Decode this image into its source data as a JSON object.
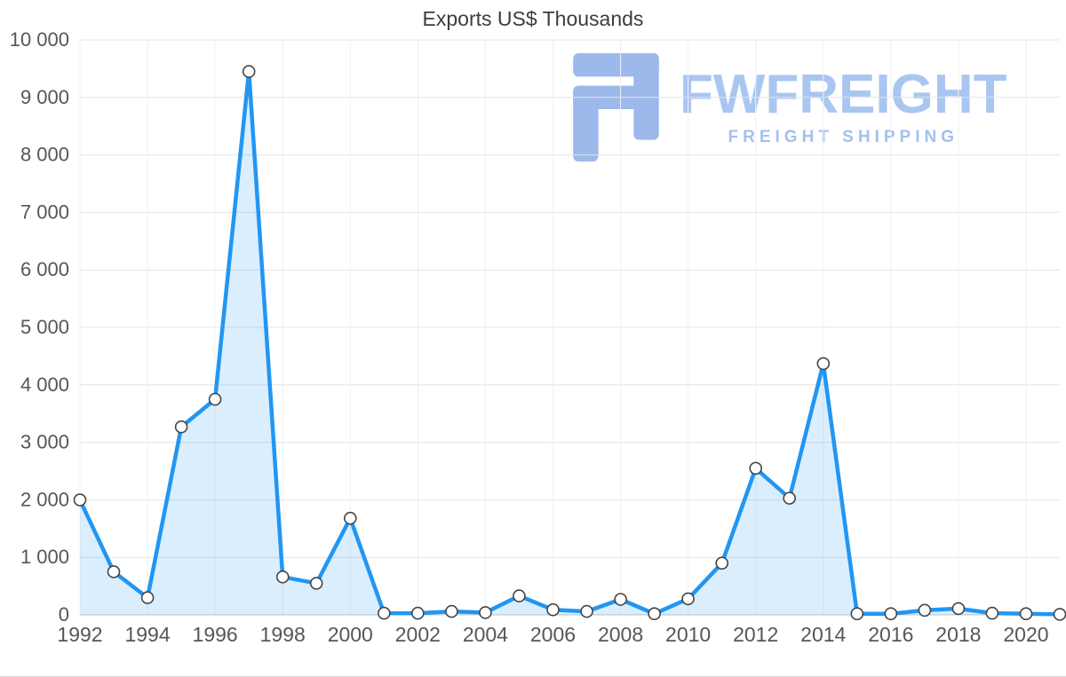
{
  "title": "Exports US$ Thousands",
  "watermark": {
    "brand": "FWFREIGHT",
    "tagline": "FREIGHT SHIPPING",
    "brand_color": "#a9c6f1",
    "icon_color": "#9cb9ec"
  },
  "chart_data": {
    "type": "area",
    "title": "Exports US$ Thousands",
    "xlabel": "",
    "ylabel": "",
    "x": [
      1992,
      1993,
      1994,
      1995,
      1996,
      1997,
      1998,
      1999,
      2000,
      2001,
      2002,
      2003,
      2004,
      2005,
      2006,
      2007,
      2008,
      2009,
      2010,
      2011,
      2012,
      2013,
      2014,
      2015,
      2016,
      2017,
      2018,
      2019,
      2020,
      2021
    ],
    "values": [
      2000,
      750,
      300,
      3270,
      3750,
      9450,
      660,
      550,
      1680,
      30,
      30,
      60,
      40,
      330,
      90,
      60,
      270,
      20,
      280,
      900,
      2550,
      2030,
      4370,
      20,
      20,
      80,
      110,
      30,
      20,
      10
    ],
    "ylim": [
      0,
      10000
    ],
    "y_tick_step": 1000,
    "y_tick_labels": [
      "0",
      "1 000",
      "2 000",
      "3 000",
      "4 000",
      "5 000",
      "6 000",
      "7 000",
      "8 000",
      "9 000",
      "10 000"
    ],
    "x_tick_labels": [
      "1992",
      "1994",
      "1996",
      "1998",
      "2000",
      "2002",
      "2004",
      "2006",
      "2008",
      "2010",
      "2012",
      "2014",
      "2016",
      "2018",
      "2020"
    ],
    "grid": true,
    "legend": "none",
    "line_color": "#2196f3",
    "fill_color": "#2196f3",
    "fill_opacity": 0.16,
    "gridline_color": "#e4e4e4",
    "vertical_gridline_color": "#f0f0f0",
    "axis_line_color": "#c8c8c8",
    "tick_label_color": "#565656",
    "marker": {
      "fill": "#ffffff",
      "stroke": "#444444",
      "radius": 6.5
    }
  }
}
